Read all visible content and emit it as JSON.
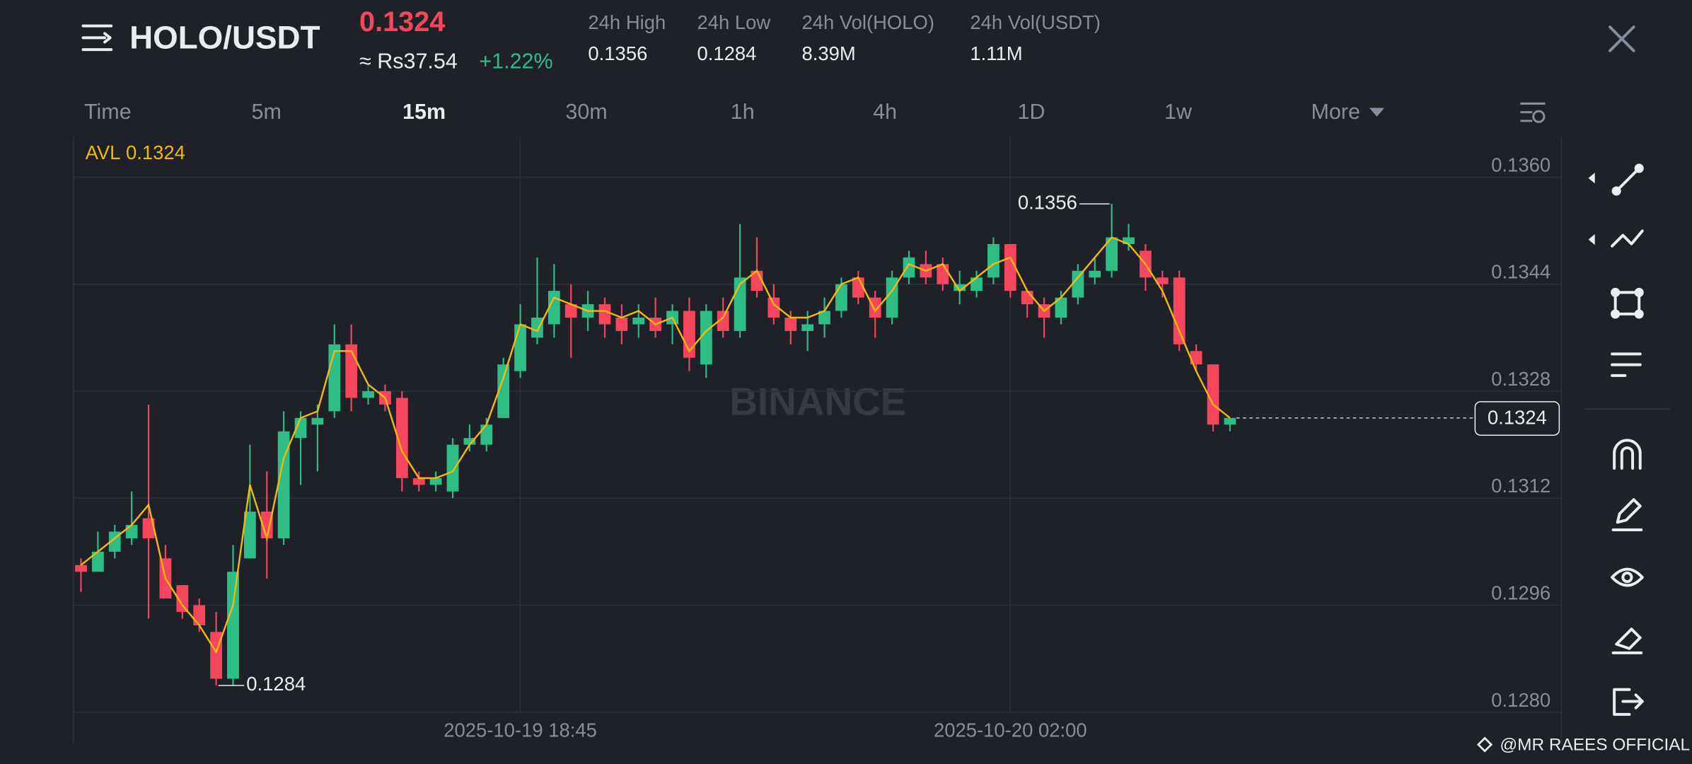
{
  "header": {
    "pair": "HOLO/USDT",
    "price": "0.1324",
    "fiat_price": "≈ Rs37.54",
    "change": "+1.22%",
    "stats": [
      {
        "label": "24h High",
        "value": "0.1356"
      },
      {
        "label": "24h Low",
        "value": "0.1284"
      },
      {
        "label": "24h Vol(HOLO)",
        "value": "8.39M"
      },
      {
        "label": "24h Vol(USDT)",
        "value": "1.11M"
      }
    ]
  },
  "intervals": [
    "Time",
    "5m",
    "15m",
    "30m",
    "1h",
    "4h",
    "1D",
    "1w",
    "More"
  ],
  "active_interval": 2,
  "watermark": "BINANCE",
  "credit": "@MR RAEES OFFICIAL",
  "chart_data": {
    "type": "candlestick",
    "categories": [
      null,
      null,
      null,
      null,
      null,
      null,
      null,
      null,
      null,
      null,
      null,
      null,
      null,
      null,
      null,
      null,
      null,
      null,
      null,
      null,
      null,
      null,
      null,
      null,
      null,
      null,
      "2025-10-19 18:45",
      null,
      null,
      null,
      null,
      null,
      null,
      null,
      null,
      null,
      null,
      null,
      null,
      null,
      null,
      null,
      null,
      null,
      null,
      null,
      null,
      null,
      null,
      null,
      null,
      null,
      null,
      null,
      null,
      "2025-10-20 02:00",
      null,
      null,
      null,
      null,
      null,
      null,
      null,
      null,
      null,
      null,
      null,
      null,
      null
    ],
    "open": [
      0.1302,
      0.1301,
      0.1304,
      0.1306,
      0.1309,
      0.1303,
      0.1299,
      0.1296,
      0.1292,
      0.1285,
      0.1303,
      0.131,
      0.1306,
      0.1321,
      0.1323,
      0.1325,
      0.1335,
      0.1327,
      0.1328,
      0.1327,
      0.1315,
      0.1314,
      0.1313,
      0.132,
      0.132,
      0.1324,
      0.1331,
      0.1336,
      0.1338,
      0.1341,
      0.1339,
      0.1341,
      0.1339,
      0.1338,
      0.1339,
      0.1338,
      0.134,
      0.1332,
      0.134,
      0.1337,
      0.1346,
      0.1342,
      0.1339,
      0.1337,
      0.1338,
      0.134,
      0.1345,
      0.1342,
      0.1339,
      0.1345,
      0.1347,
      0.1347,
      0.1343,
      0.1343,
      0.1345,
      0.135,
      0.1343,
      0.1341,
      0.1339,
      0.1342,
      0.1345,
      0.1346,
      0.135,
      0.1349,
      0.1345,
      0.1345,
      0.1334,
      0.1332,
      0.1323
    ],
    "high": [
      0.1303,
      0.1307,
      0.1308,
      0.1313,
      0.1326,
      0.1305,
      0.1299,
      0.1297,
      0.1295,
      0.1305,
      0.132,
      0.1316,
      0.1325,
      0.1325,
      0.1326,
      0.1338,
      0.1338,
      0.1329,
      0.1329,
      0.1328,
      0.1316,
      0.1316,
      0.1321,
      0.1323,
      0.1324,
      0.1333,
      0.1341,
      0.1348,
      0.1347,
      0.1344,
      0.1343,
      0.1342,
      0.1341,
      0.1341,
      0.1342,
      0.1341,
      0.1342,
      0.1341,
      0.1342,
      0.1353,
      0.1351,
      0.1344,
      0.134,
      0.134,
      0.1342,
      0.1345,
      0.1346,
      0.1343,
      0.1346,
      0.1349,
      0.1349,
      0.1348,
      0.1346,
      0.1346,
      0.1351,
      0.135,
      0.1343,
      0.1342,
      0.1343,
      0.1347,
      0.1348,
      0.1356,
      0.1353,
      0.135,
      0.1346,
      0.1346,
      0.1335,
      0.1332,
      0.1324
    ],
    "low": [
      0.1298,
      0.1301,
      0.1303,
      0.1305,
      0.1294,
      0.1297,
      0.1294,
      0.1292,
      0.1284,
      0.1284,
      0.1303,
      0.13,
      0.1305,
      0.1314,
      0.1316,
      0.1324,
      0.1325,
      0.1326,
      0.1325,
      0.1313,
      0.1313,
      0.1313,
      0.1312,
      0.1319,
      0.1319,
      0.1324,
      0.133,
      0.1335,
      0.1336,
      0.1333,
      0.1337,
      0.1336,
      0.1335,
      0.1336,
      0.1336,
      0.1335,
      0.1331,
      0.133,
      0.1336,
      0.1336,
      0.1342,
      0.1338,
      0.1335,
      0.1334,
      0.1336,
      0.1339,
      0.1341,
      0.1336,
      0.1338,
      0.1344,
      0.1344,
      0.1343,
      0.1341,
      0.1342,
      0.1344,
      0.1342,
      0.1339,
      0.1336,
      0.1338,
      0.1341,
      0.1344,
      0.1345,
      0.1349,
      0.1343,
      0.1342,
      0.1334,
      0.1331,
      0.1322,
      0.1322
    ],
    "close": [
      0.1301,
      0.1304,
      0.1307,
      0.1308,
      0.1306,
      0.1297,
      0.1295,
      0.1293,
      0.1285,
      0.1301,
      0.131,
      0.1306,
      0.1322,
      0.1324,
      0.1324,
      0.1335,
      0.1327,
      0.1328,
      0.1326,
      0.1315,
      0.1314,
      0.1315,
      0.132,
      0.1321,
      0.1323,
      0.1332,
      0.1338,
      0.1339,
      0.1343,
      0.1339,
      0.1341,
      0.1338,
      0.1337,
      0.1339,
      0.1337,
      0.134,
      0.1333,
      0.134,
      0.1337,
      0.1345,
      0.1343,
      0.1339,
      0.1337,
      0.1338,
      0.134,
      0.1344,
      0.1342,
      0.1339,
      0.1345,
      0.1348,
      0.1345,
      0.1344,
      0.1344,
      0.1345,
      0.135,
      0.1343,
      0.1341,
      0.1339,
      0.1342,
      0.1346,
      0.1346,
      0.1351,
      0.1351,
      0.1345,
      0.1344,
      0.1335,
      0.1332,
      0.1323,
      0.1324
    ],
    "up_color": "#2ebd85",
    "down_color": "#f6465d",
    "avl": {
      "name": "AVL",
      "color": "#f0b90b",
      "last": 0.1324,
      "values": [
        0.1302,
        0.1304,
        0.1306,
        0.1308,
        0.1311,
        0.13,
        0.1296,
        0.1293,
        0.1289,
        0.1296,
        0.1314,
        0.1306,
        0.1318,
        0.1324,
        0.1325,
        0.1334,
        0.1334,
        0.1329,
        0.1327,
        0.1319,
        0.1315,
        0.1315,
        0.1316,
        0.132,
        0.1323,
        0.133,
        0.1338,
        0.1337,
        0.1342,
        0.1341,
        0.134,
        0.134,
        0.1339,
        0.134,
        0.1338,
        0.1339,
        0.1334,
        0.1337,
        0.1339,
        0.1344,
        0.1346,
        0.1341,
        0.1339,
        0.1339,
        0.134,
        0.1344,
        0.1345,
        0.134,
        0.1343,
        0.1347,
        0.1346,
        0.1347,
        0.1343,
        0.1345,
        0.1347,
        0.1348,
        0.1343,
        0.134,
        0.1342,
        0.1345,
        0.1348,
        0.1351,
        0.135,
        0.1347,
        0.1343,
        0.1337,
        0.1331,
        0.1326,
        0.1324
      ]
    },
    "last_price": 0.1324,
    "high_label": 0.1356,
    "low_label": 0.1284,
    "ylim": [
      0.128,
      0.1366
    ],
    "yticks": [
      {
        "value": 0.128,
        "label": "0.1280"
      },
      0.1296,
      0.1312,
      0.1328,
      0.1344,
      {
        "value": 0.136,
        "label": "0.1360"
      }
    ],
    "grid": true
  }
}
